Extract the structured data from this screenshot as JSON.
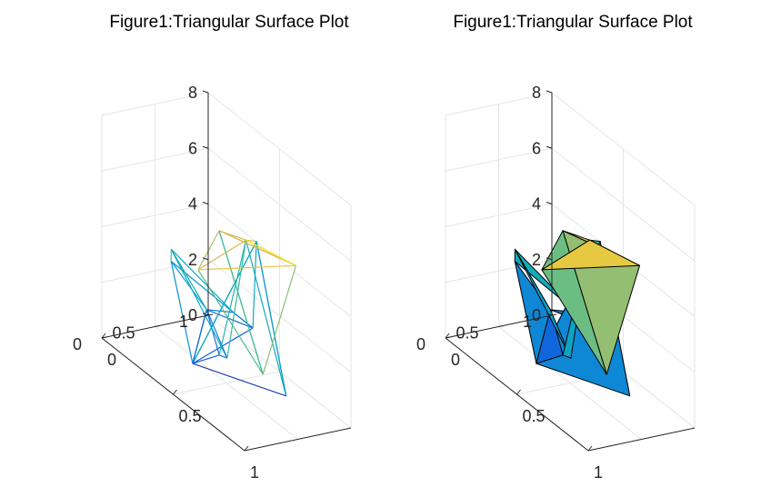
{
  "chart_data": [
    {
      "type": "mesh",
      "title": "Figure1:Triangular Surface Plot",
      "render": "wireframe",
      "xlim": [
        0,
        1
      ],
      "ylim": [
        0,
        1
      ],
      "zlim": [
        0,
        8
      ],
      "x_ticks": [
        "0",
        "0.5",
        "1"
      ],
      "y_ticks": [
        "0",
        "0.5",
        "1"
      ],
      "z_ticks": [
        "0",
        "2",
        "4",
        "6",
        "8"
      ],
      "grid": true,
      "colormap": "parula",
      "vertices": [
        [
          0.95,
          0.55,
          6.0
        ],
        [
          0.98,
          0.2,
          2.5
        ],
        [
          0.6,
          0.55,
          5.5
        ],
        [
          0.3,
          0.7,
          4.5
        ],
        [
          0.6,
          0.1,
          4.8
        ],
        [
          0.68,
          0.82,
          0.0
        ],
        [
          0.45,
          0.85,
          4.6
        ],
        [
          0.45,
          0.5,
          0.8
        ],
        [
          0.58,
          0.4,
          1.3
        ],
        [
          0.45,
          0.25,
          0.7
        ],
        [
          0.25,
          0.65,
          1.5
        ],
        [
          0.35,
          0.95,
          1.0
        ],
        [
          0.25,
          0.9,
          1.2
        ],
        [
          0.3,
          0.25,
          4.2
        ],
        [
          0.15,
          0.45,
          3.0
        ]
      ],
      "faces": [
        [
          0,
          1,
          3
        ],
        [
          0,
          2,
          4
        ],
        [
          0,
          3,
          2
        ],
        [
          1,
          3,
          4
        ],
        [
          2,
          5,
          6
        ],
        [
          2,
          7,
          8
        ],
        [
          5,
          6,
          9
        ],
        [
          6,
          9,
          11
        ],
        [
          9,
          10,
          14
        ],
        [
          10,
          11,
          12
        ],
        [
          7,
          9,
          10
        ],
        [
          12,
          13,
          14
        ],
        [
          8,
          13,
          10
        ]
      ]
    },
    {
      "type": "surface",
      "title": "Figure1:Triangular Surface Plot",
      "render": "faceted",
      "xlim": [
        0,
        1
      ],
      "ylim": [
        0,
        1
      ],
      "zlim": [
        0,
        8
      ],
      "x_ticks": [
        "0",
        "0.5",
        "1"
      ],
      "y_ticks": [
        "0",
        "0.5",
        "1"
      ],
      "z_ticks": [
        "0",
        "2",
        "4",
        "6",
        "8"
      ],
      "grid": true,
      "colormap": "parula",
      "vertices": [
        [
          0.95,
          0.55,
          6.0
        ],
        [
          0.98,
          0.2,
          2.5
        ],
        [
          0.6,
          0.55,
          5.5
        ],
        [
          0.3,
          0.7,
          4.5
        ],
        [
          0.6,
          0.1,
          4.8
        ],
        [
          0.68,
          0.82,
          0.0
        ],
        [
          0.45,
          0.85,
          4.6
        ],
        [
          0.45,
          0.5,
          0.8
        ],
        [
          0.58,
          0.4,
          1.3
        ],
        [
          0.45,
          0.25,
          0.7
        ],
        [
          0.25,
          0.65,
          1.5
        ],
        [
          0.35,
          0.95,
          1.0
        ],
        [
          0.25,
          0.9,
          1.2
        ],
        [
          0.3,
          0.25,
          4.2
        ],
        [
          0.15,
          0.45,
          3.0
        ]
      ],
      "faces": [
        [
          0,
          1,
          3
        ],
        [
          0,
          2,
          4
        ],
        [
          0,
          3,
          2
        ],
        [
          1,
          3,
          4
        ],
        [
          2,
          5,
          6
        ],
        [
          2,
          7,
          8
        ],
        [
          5,
          6,
          9
        ],
        [
          6,
          9,
          11
        ],
        [
          9,
          10,
          14
        ],
        [
          10,
          11,
          12
        ],
        [
          7,
          9,
          10
        ],
        [
          12,
          13,
          14
        ],
        [
          8,
          13,
          10
        ]
      ]
    }
  ]
}
